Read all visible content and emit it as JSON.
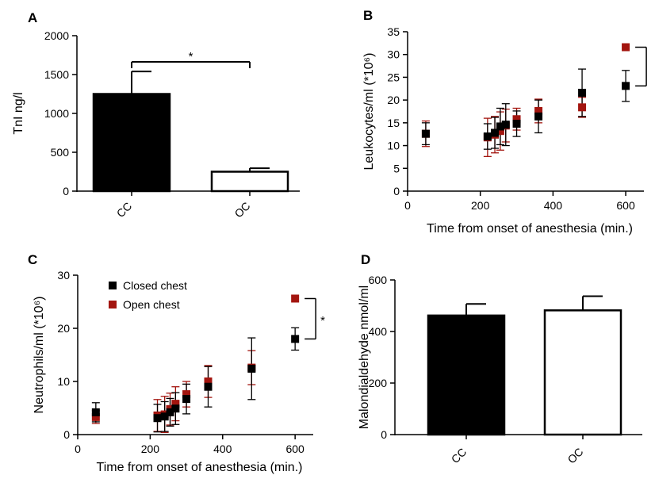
{
  "colors": {
    "closed_chest": "#000000",
    "open_chest": "#a3150f",
    "axis": "#000000"
  },
  "chart_data": [
    {
      "panel": "A",
      "type": "bar",
      "ylabel": "TnI ng/l",
      "xlabel": "",
      "categories": [
        "CC",
        "OC"
      ],
      "values": [
        1250,
        250
      ],
      "errors": [
        290,
        45
      ],
      "fills": [
        "#000000",
        "#ffffff"
      ],
      "ylim": [
        0,
        2000
      ],
      "yticks": [
        "0",
        "500",
        "1000",
        "1500",
        "2000"
      ],
      "significance": "*"
    },
    {
      "panel": "B",
      "type": "scatter",
      "ylabel": "Leukocytes/ml (*10⁶)",
      "xlabel": "Time from onset of anesthesia (min.)",
      "xlim": [
        0,
        650
      ],
      "ylim": [
        0,
        35
      ],
      "xticks": [
        "0",
        "200",
        "400",
        "600"
      ],
      "yticks": [
        "0",
        "5",
        "10",
        "15",
        "20",
        "25",
        "30",
        "35"
      ],
      "series": [
        {
          "name": "Closed chest",
          "x": [
            50,
            220,
            240,
            255,
            270,
            300,
            360,
            480,
            600
          ],
          "y": [
            12.6,
            12.0,
            12.8,
            14.2,
            14.6,
            14.8,
            16.4,
            21.6,
            23.1
          ],
          "err": [
            2.4,
            2.8,
            3.4,
            4.0,
            4.6,
            2.8,
            3.6,
            5.2,
            3.4
          ]
        },
        {
          "name": "Open chest",
          "x": [
            50,
            220,
            240,
            255,
            270,
            300,
            360,
            480,
            600
          ],
          "y": [
            12.6,
            11.8,
            12.4,
            13.2,
            14.4,
            15.8,
            17.6,
            18.4,
            31.6
          ],
          "err": [
            2.8,
            4.2,
            4.0,
            4.2,
            3.6,
            2.4,
            2.6,
            2.2,
            0
          ]
        }
      ],
      "significance": "",
      "legend": false
    },
    {
      "panel": "C",
      "type": "scatter",
      "ylabel": "Neutrophils/ml (*10⁶)",
      "xlabel": "Time from onset of anesthesia (min.)",
      "xlim": [
        0,
        650
      ],
      "ylim": [
        0,
        30
      ],
      "xticks": [
        "0",
        "200",
        "400",
        "600"
      ],
      "yticks": [
        "0",
        "10",
        "20",
        "30"
      ],
      "series": [
        {
          "name": "Closed chest",
          "x": [
            50,
            220,
            240,
            255,
            270,
            300,
            360,
            480,
            600
          ],
          "y": [
            4.2,
            3.1,
            3.4,
            4.2,
            4.9,
            6.7,
            9.0,
            12.4,
            18.0
          ],
          "err": [
            1.8,
            2.6,
            2.8,
            2.6,
            3.0,
            2.8,
            3.8,
            5.8,
            2.1
          ]
        },
        {
          "name": "Open chest",
          "x": [
            50,
            220,
            240,
            255,
            270,
            300,
            360,
            480,
            600
          ],
          "y": [
            3.3,
            3.6,
            3.8,
            4.8,
            5.8,
            7.6,
            10.0,
            12.6,
            25.6
          ],
          "err": [
            1.2,
            3.0,
            3.4,
            3.0,
            3.2,
            2.4,
            3.0,
            3.2,
            0
          ]
        }
      ],
      "significance": "*",
      "legend": true,
      "legend_position": "top-left"
    },
    {
      "panel": "D",
      "type": "bar",
      "ylabel": "Malondialdehyde nmol/ml",
      "xlabel": "",
      "categories": [
        "CC",
        "OC"
      ],
      "values": [
        462,
        482
      ],
      "errors": [
        45,
        55
      ],
      "fills": [
        "#000000",
        "#ffffff"
      ],
      "ylim": [
        0,
        600
      ],
      "yticks": [
        "0",
        "200",
        "400",
        "600"
      ],
      "significance": ""
    }
  ]
}
